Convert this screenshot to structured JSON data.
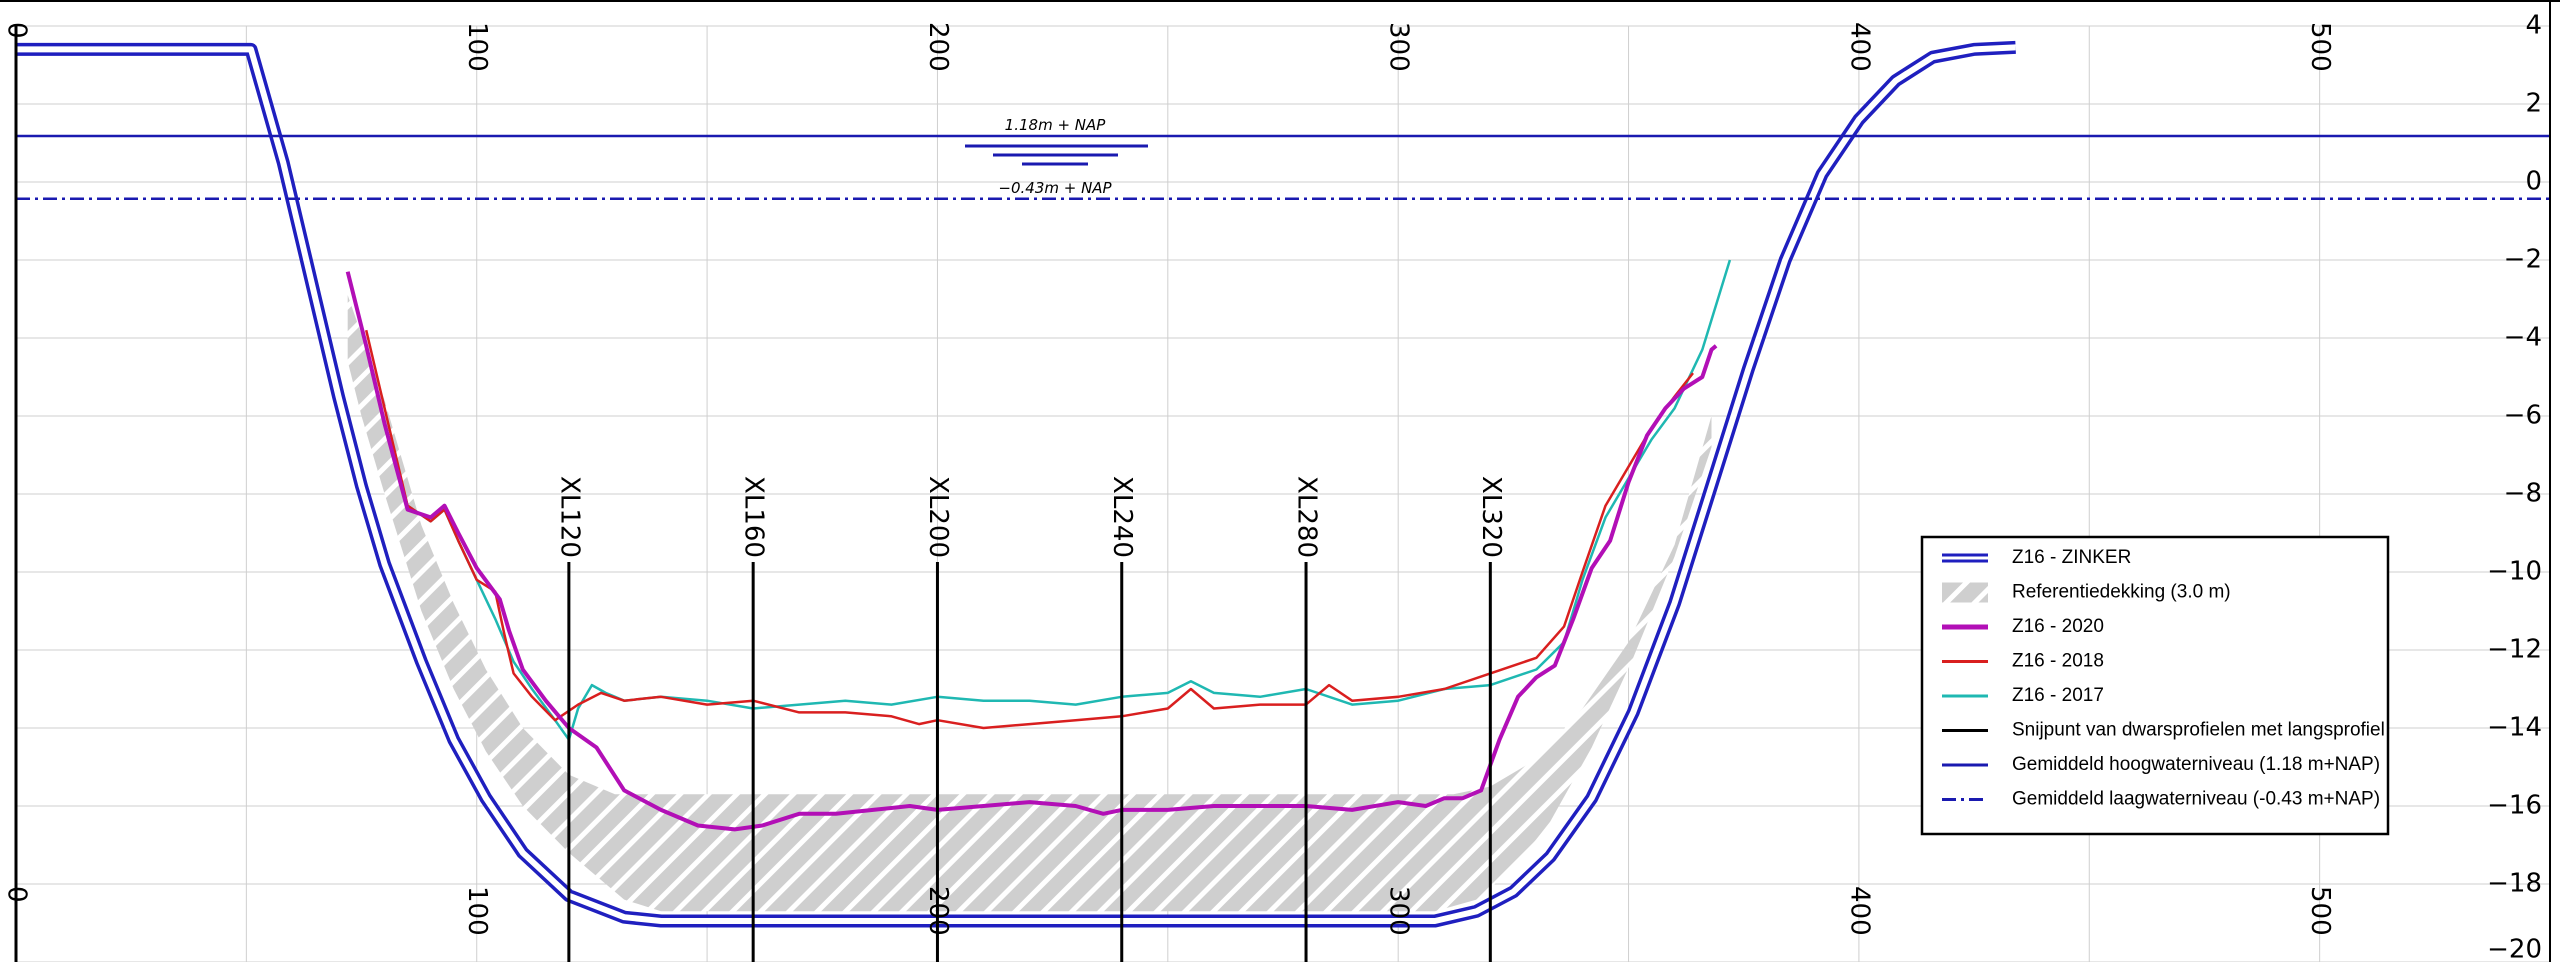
{
  "chart_data": {
    "type": "line",
    "title": "",
    "xlabel": "",
    "ylabel": "",
    "xlim": [
      0,
      550
    ],
    "ylim": [
      -20,
      4
    ],
    "x_ticks": [
      "0",
      "100",
      "200",
      "300",
      "400",
      "500"
    ],
    "x_tick_values": [
      0,
      100,
      200,
      300,
      400,
      500
    ],
    "y_ticks": [
      "4",
      "2",
      "0",
      "−2",
      "−4",
      "−6",
      "−8",
      "−10",
      "−12",
      "−14",
      "−16",
      "−18",
      "−20"
    ],
    "y_tick_values": [
      4,
      2,
      0,
      -2,
      -4,
      -6,
      -8,
      -10,
      -12,
      -14,
      -16,
      -18,
      -20
    ],
    "grid": true,
    "legend_position": "lower-right",
    "levels": {
      "high": {
        "value": 1.18,
        "label": "1.18m + NAP"
      },
      "low": {
        "value": -0.43,
        "label": "−0.43m + NAP"
      }
    },
    "cross_sections": [
      {
        "label": "XL120",
        "x": 120
      },
      {
        "label": "XL160",
        "x": 160
      },
      {
        "label": "XL200",
        "x": 200
      },
      {
        "label": "XL240",
        "x": 240
      },
      {
        "label": "XL280",
        "x": 280
      },
      {
        "label": "XL320",
        "x": 320
      }
    ],
    "series": [
      {
        "name": "Z16 - ZINKER",
        "color": "#1f1fbf",
        "x": [
          0,
          51,
          58,
          63,
          70,
          75,
          80,
          88,
          95,
          102,
          110,
          120,
          132,
          140,
          200,
          250,
          308,
          317,
          325,
          333,
          342,
          351,
          360,
          368,
          376,
          384,
          392,
          400,
          408,
          416,
          425,
          434
        ],
        "y": [
          3.4,
          3.4,
          0.5,
          -2.0,
          -5.5,
          -7.8,
          -9.8,
          -12.3,
          -14.3,
          -15.8,
          -17.2,
          -18.3,
          -18.85,
          -18.95,
          -18.95,
          -18.95,
          -18.95,
          -18.7,
          -18.2,
          -17.3,
          -15.8,
          -13.6,
          -10.8,
          -7.8,
          -4.8,
          -2.0,
          0.2,
          1.6,
          2.6,
          3.2,
          3.4,
          3.45
        ]
      },
      {
        "name": "Referentiedekking (3.0 m)",
        "color": "#c8c8c8",
        "top_x": [
          72,
          80,
          88,
          95,
          102,
          110,
          120,
          130,
          150,
          200,
          250,
          300,
          312,
          320,
          330,
          340,
          350,
          360,
          368
        ],
        "top_y": [
          -2.9,
          -5.6,
          -8.8,
          -10.8,
          -12.5,
          -14.0,
          -15.2,
          -15.7,
          -15.7,
          -15.7,
          -15.7,
          -15.7,
          -15.7,
          -15.5,
          -14.8,
          -13.5,
          -11.8,
          -9.3,
          -6.0
        ],
        "bottom_x": [
          72,
          75,
          80,
          88,
          95,
          102,
          110,
          120,
          132,
          140,
          200,
          250,
          308,
          317,
          325,
          333,
          342,
          351,
          360,
          368
        ],
        "bottom_y": [
          -4.6,
          -6.0,
          -8.0,
          -11.0,
          -13.0,
          -14.6,
          -16.0,
          -17.2,
          -18.4,
          -18.7,
          -18.7,
          -18.7,
          -18.7,
          -18.4,
          -17.6,
          -16.4,
          -14.5,
          -12.2,
          -9.6,
          -6.8
        ]
      },
      {
        "name": "Z16 - 2020",
        "color": "#b20fb6",
        "x": [
          72,
          76,
          80,
          85,
          90,
          93,
          96,
          100,
          105,
          107,
          110,
          115,
          120,
          126,
          132,
          140,
          148,
          156,
          162,
          170,
          178,
          186,
          194,
          200,
          210,
          220,
          230,
          236,
          240,
          250,
          260,
          270,
          280,
          290,
          300,
          306,
          310,
          314,
          318,
          322,
          326,
          330,
          334,
          338,
          342,
          346,
          350,
          354,
          358,
          362,
          366,
          368,
          369
        ],
        "y": [
          -2.3,
          -4.2,
          -6.2,
          -8.4,
          -8.6,
          -8.3,
          -9.0,
          -9.9,
          -10.7,
          -11.5,
          -12.5,
          -13.3,
          -14.0,
          -14.5,
          -15.6,
          -16.1,
          -16.5,
          -16.6,
          -16.5,
          -16.2,
          -16.2,
          -16.1,
          -16.0,
          -16.1,
          -16.0,
          -15.9,
          -16.0,
          -16.2,
          -16.1,
          -16.1,
          -16.0,
          -16.0,
          -16.0,
          -16.1,
          -15.9,
          -16.0,
          -15.8,
          -15.8,
          -15.6,
          -14.3,
          -13.2,
          -12.7,
          -12.4,
          -11.2,
          -9.9,
          -9.2,
          -7.7,
          -6.5,
          -5.8,
          -5.3,
          -5.0,
          -4.3,
          -4.2
        ]
      },
      {
        "name": "Z16 - 2018",
        "color": "#d91f1f",
        "x": [
          76,
          80,
          85,
          90,
          93,
          96,
          100,
          104,
          106,
          108,
          112,
          117,
          122,
          127,
          132,
          140,
          150,
          160,
          170,
          180,
          190,
          196,
          200,
          210,
          220,
          230,
          240,
          250,
          255,
          260,
          270,
          280,
          285,
          290,
          300,
          310,
          320,
          330,
          336,
          340,
          345,
          350,
          355,
          360,
          364
        ],
        "y": [
          -3.8,
          -5.8,
          -8.3,
          -8.7,
          -8.4,
          -9.2,
          -10.2,
          -10.5,
          -11.6,
          -12.6,
          -13.2,
          -13.8,
          -13.4,
          -13.1,
          -13.3,
          -13.2,
          -13.4,
          -13.3,
          -13.6,
          -13.6,
          -13.7,
          -13.9,
          -13.8,
          -14.0,
          -13.9,
          -13.8,
          -13.7,
          -13.5,
          -13.0,
          -13.5,
          -13.4,
          -13.4,
          -12.9,
          -13.3,
          -13.2,
          -13.0,
          -12.6,
          -12.2,
          -11.4,
          -10.0,
          -8.3,
          -7.3,
          -6.3,
          -5.5,
          -4.9
        ]
      },
      {
        "name": "Z16 - 2017",
        "color": "#1fb8b2",
        "x": [
          80,
          85,
          90,
          93,
          96,
          100,
          104,
          108,
          112,
          117,
          120,
          122,
          125,
          128,
          132,
          140,
          150,
          160,
          170,
          180,
          190,
          200,
          210,
          220,
          230,
          240,
          250,
          255,
          260,
          270,
          280,
          290,
          300,
          310,
          320,
          330,
          336,
          340,
          345,
          350,
          355,
          360,
          366,
          372
        ],
        "y": [
          -6.2,
          -8.3,
          -8.7,
          -8.4,
          -9.2,
          -10.2,
          -11.2,
          -12.3,
          -13.0,
          -13.8,
          -14.3,
          -13.5,
          -12.9,
          -13.1,
          -13.3,
          -13.2,
          -13.3,
          -13.5,
          -13.4,
          -13.3,
          -13.4,
          -13.2,
          -13.3,
          -13.3,
          -13.4,
          -13.2,
          -13.1,
          -12.8,
          -13.1,
          -13.2,
          -13.0,
          -13.4,
          -13.3,
          -13.0,
          -12.9,
          -12.5,
          -11.8,
          -10.2,
          -8.6,
          -7.6,
          -6.6,
          -5.8,
          -4.3,
          -2.0
        ]
      }
    ],
    "legend": [
      {
        "label": "Z16 - ZINKER",
        "style": "double"
      },
      {
        "label": "Referentiedekking (3.0 m)",
        "style": "hatch"
      },
      {
        "label": "Z16 - 2020",
        "style": "thick"
      },
      {
        "label": "Z16 - 2018",
        "style": "line"
      },
      {
        "label": "Z16 - 2017",
        "style": "line"
      },
      {
        "label": "Snijpunt van dwarsprofielen met langsprofiel",
        "style": "black"
      },
      {
        "label": "Gemiddeld hoogwaterniveau (1.18 m+NAP)",
        "style": "solid-blue"
      },
      {
        "label": "Gemiddeld laagwaterniveau (-0.43 m+NAP)",
        "style": "dashdot-blue"
      }
    ]
  }
}
